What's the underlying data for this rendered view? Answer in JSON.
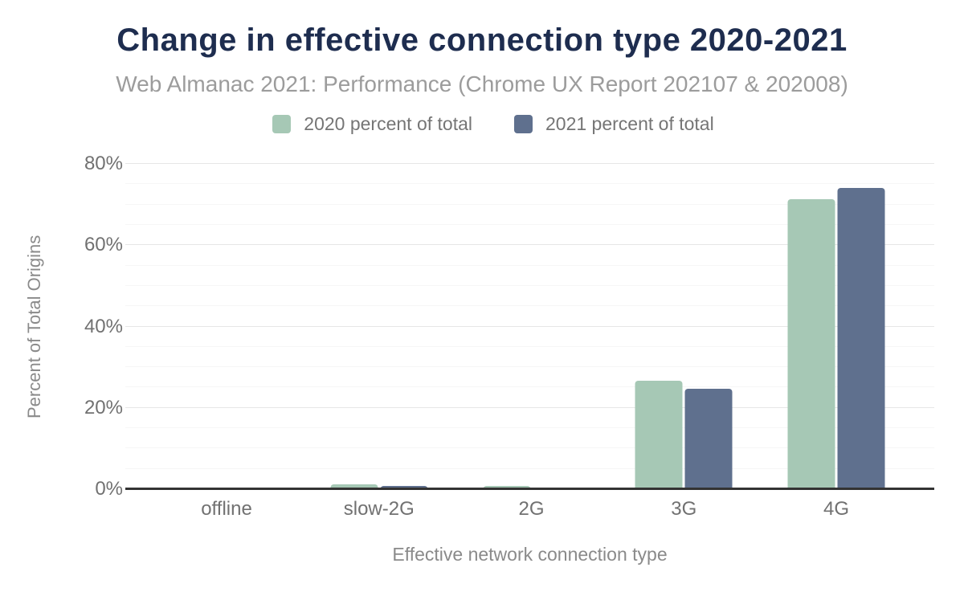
{
  "title": "Change in effective connection type 2020-2021",
  "subtitle": "Web Almanac 2021: Performance (Chrome UX Report 202107 & 202008)",
  "chart_data": {
    "type": "bar",
    "categories": [
      "offline",
      "slow-2G",
      "2G",
      "3G",
      "4G"
    ],
    "series": [
      {
        "name": "2020 percent of total",
        "color": "#a6c8b5",
        "values": [
          0.0,
          1.1,
          0.8,
          26.7,
          71.3
        ]
      },
      {
        "name": "2021 percent of total",
        "color": "#5f708e",
        "values": [
          0.0,
          0.7,
          0.1,
          24.7,
          74.1
        ]
      }
    ],
    "xlabel": "Effective network connection type",
    "ylabel": "Percent of Total Origins",
    "ylim": [
      0,
      80
    ],
    "ytick_values": [
      0,
      20,
      40,
      60,
      80
    ],
    "ytick_labels": [
      "0%",
      "20%",
      "40%",
      "60%",
      "80%"
    ],
    "y_minor_step": 5,
    "grid": true,
    "legend_position": "top"
  },
  "colors": {
    "title": "#1e2d4f",
    "subtitle": "#9c9c9c",
    "axis_text": "#717171",
    "axis_line": "#333333",
    "grid_major": "#e6e6e6",
    "grid_minor": "#f6f6f6",
    "background": "#ffffff"
  }
}
